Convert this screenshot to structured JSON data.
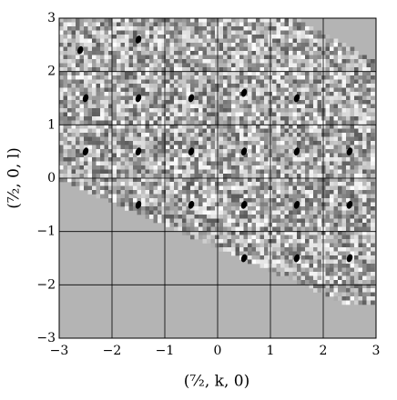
{
  "chart_data": {
    "type": "scatter",
    "x_label": "(⁷⁄₂, k, 0)",
    "y_label": "(⁷⁄₂, 0, l)",
    "xlim": [
      -3,
      3
    ],
    "ylim": [
      -3,
      3
    ],
    "xticks": [
      {
        "value": -3,
        "label": "−3"
      },
      {
        "value": -2,
        "label": "−2"
      },
      {
        "value": -1,
        "label": "−1"
      },
      0,
      1,
      2,
      3
    ],
    "yticks": [
      {
        "value": -3,
        "label": "−3"
      },
      {
        "value": -2,
        "label": "−2"
      },
      {
        "value": -1,
        "label": "−1"
      },
      0,
      1,
      2,
      3
    ],
    "grid": true,
    "color": "#000000",
    "x": [
      -2.6,
      -1.5,
      -2.5,
      -1.5,
      -0.5,
      0.5,
      1.5,
      -2.5,
      -1.5,
      -0.5,
      0.5,
      1.5,
      2.5,
      -1.5,
      -0.5,
      0.5,
      1.5,
      2.5,
      0.5,
      1.5,
      2.5
    ],
    "values": [
      2.4,
      2.6,
      1.5,
      1.5,
      1.5,
      1.6,
      1.5,
      0.5,
      0.5,
      0.5,
      0.5,
      0.5,
      0.5,
      -0.5,
      -0.5,
      -0.5,
      -0.5,
      -0.5,
      -1.5,
      -1.5,
      -1.5
    ]
  }
}
